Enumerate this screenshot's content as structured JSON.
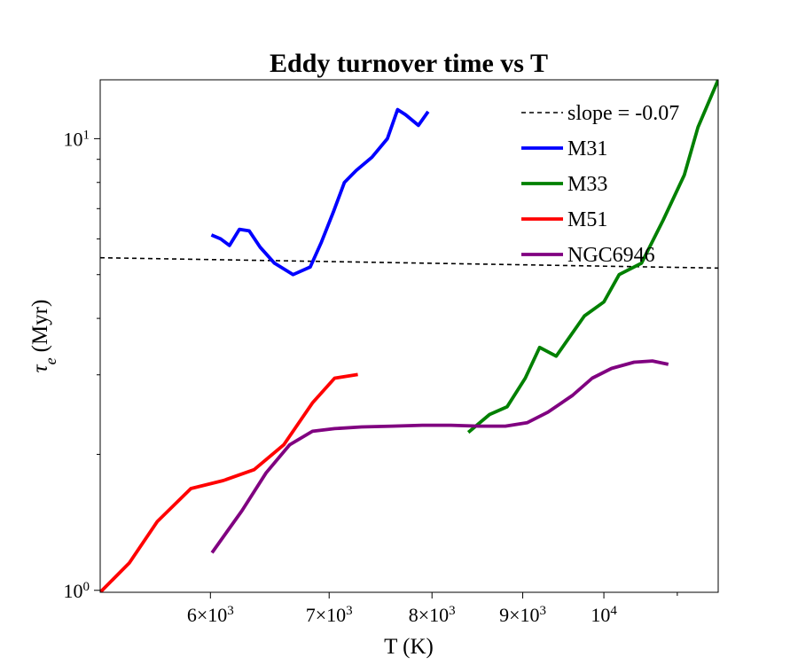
{
  "chart_data": {
    "type": "line",
    "title": "Eddy turnover time vs T",
    "xlabel": "T (K)",
    "ylabel_symbol": "τ",
    "ylabel_subscript": "e",
    "ylabel_unit": "(Myr)",
    "xscale": "log",
    "yscale": "log",
    "xlim": [
      5200,
      11600
    ],
    "ylim": [
      0.99,
      13.5
    ],
    "grid": false,
    "legend_position": "top-right",
    "x_ticks": [
      {
        "value": 6000,
        "mantissa": "6",
        "base": "10",
        "exp": "3"
      },
      {
        "value": 7000,
        "mantissa": "7",
        "base": "10",
        "exp": "3"
      },
      {
        "value": 8000,
        "mantissa": "8",
        "base": "10",
        "exp": "3"
      },
      {
        "value": 9000,
        "mantissa": "9",
        "base": "10",
        "exp": "3"
      },
      {
        "value": 10000,
        "mantissa": "",
        "base": "10",
        "exp": "4"
      }
    ],
    "y_ticks": [
      {
        "value": 1,
        "base": "10",
        "exp": "0"
      },
      {
        "value": 10,
        "base": "10",
        "exp": "1"
      }
    ],
    "y_minor_ticks": [
      2,
      3,
      4,
      5,
      6,
      7,
      8,
      9
    ],
    "x_minor_ticks": [
      11000
    ],
    "reference_line": {
      "name": "slope = -0.07",
      "style": "dashed",
      "color": "#000000",
      "x": [
        5200,
        11600
      ],
      "y": [
        5.45,
        5.17
      ]
    },
    "series": [
      {
        "name": "M31",
        "color": "#0000ff",
        "x": [
          6020,
          6080,
          6150,
          6230,
          6310,
          6400,
          6520,
          6680,
          6830,
          6930,
          7040,
          7140,
          7250,
          7400,
          7550,
          7650,
          7730,
          7860,
          7950
        ],
        "y": [
          6.1,
          6.0,
          5.8,
          6.3,
          6.25,
          5.75,
          5.3,
          5.0,
          5.2,
          5.9,
          6.9,
          8.0,
          8.5,
          9.1,
          10.0,
          11.6,
          11.3,
          10.7,
          11.4
        ]
      },
      {
        "name": "M33",
        "color": "#008000",
        "x": [
          8400,
          8620,
          8820,
          9030,
          9200,
          9400,
          9750,
          10000,
          10200,
          10500,
          10800,
          11100,
          11300,
          11600
        ],
        "y": [
          2.25,
          2.45,
          2.55,
          2.95,
          3.45,
          3.3,
          4.05,
          4.35,
          5.0,
          5.3,
          6.6,
          8.3,
          10.6,
          13.5
        ]
      },
      {
        "name": "M51",
        "color": "#ff0000",
        "x": [
          5200,
          5400,
          5600,
          5850,
          6100,
          6350,
          6600,
          6850,
          7050,
          7250
        ],
        "y": [
          0.99,
          1.15,
          1.42,
          1.68,
          1.75,
          1.85,
          2.1,
          2.6,
          2.95,
          3.0
        ]
      },
      {
        "name": "NGC6946",
        "color": "#800080",
        "x": [
          6020,
          6250,
          6450,
          6650,
          6850,
          7050,
          7300,
          7600,
          7900,
          8200,
          8500,
          8800,
          9050,
          9300,
          9600,
          9850,
          10100,
          10400,
          10650,
          10850
        ],
        "y": [
          1.22,
          1.5,
          1.82,
          2.1,
          2.25,
          2.28,
          2.3,
          2.31,
          2.32,
          2.32,
          2.31,
          2.31,
          2.35,
          2.48,
          2.7,
          2.95,
          3.1,
          3.2,
          3.22,
          3.17
        ]
      }
    ]
  }
}
